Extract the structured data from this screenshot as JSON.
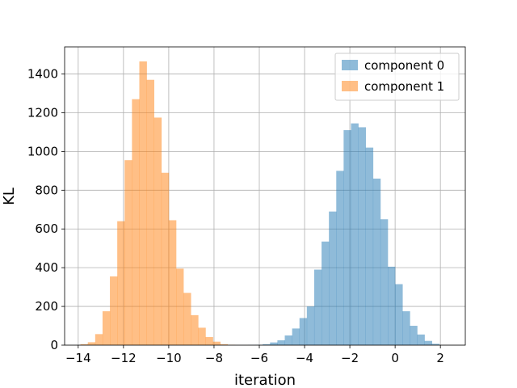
{
  "chart_data": {
    "type": "bar",
    "title": "",
    "xlabel": "iteration",
    "ylabel": "KL",
    "xlim": [
      -14.6,
      3.1
    ],
    "ylim": [
      0,
      1540
    ],
    "grid": true,
    "legend_position": "upper right",
    "x_ticks": [
      -14,
      -12,
      -10,
      -8,
      -6,
      -4,
      -2,
      0,
      2
    ],
    "y_ticks": [
      0,
      200,
      400,
      600,
      800,
      1000,
      1200,
      1400
    ],
    "bin_width": 0.325,
    "series": [
      {
        "name": "component 0",
        "color": "#1f77b4",
        "alpha": 0.5,
        "bin_start": -6.5,
        "counts": [
          1,
          2,
          5,
          14,
          25,
          50,
          86,
          140,
          200,
          390,
          535,
          690,
          900,
          1110,
          1145,
          1125,
          1020,
          860,
          650,
          405,
          315,
          175,
          100,
          55,
          22,
          7
        ]
      },
      {
        "name": "component 1",
        "color": "#ff7f0e",
        "alpha": 0.5,
        "bin_start": -13.9,
        "counts": [
          5,
          15,
          57,
          175,
          355,
          640,
          955,
          1270,
          1465,
          1370,
          1175,
          890,
          645,
          395,
          270,
          155,
          90,
          42,
          18,
          5,
          2
        ]
      }
    ]
  }
}
